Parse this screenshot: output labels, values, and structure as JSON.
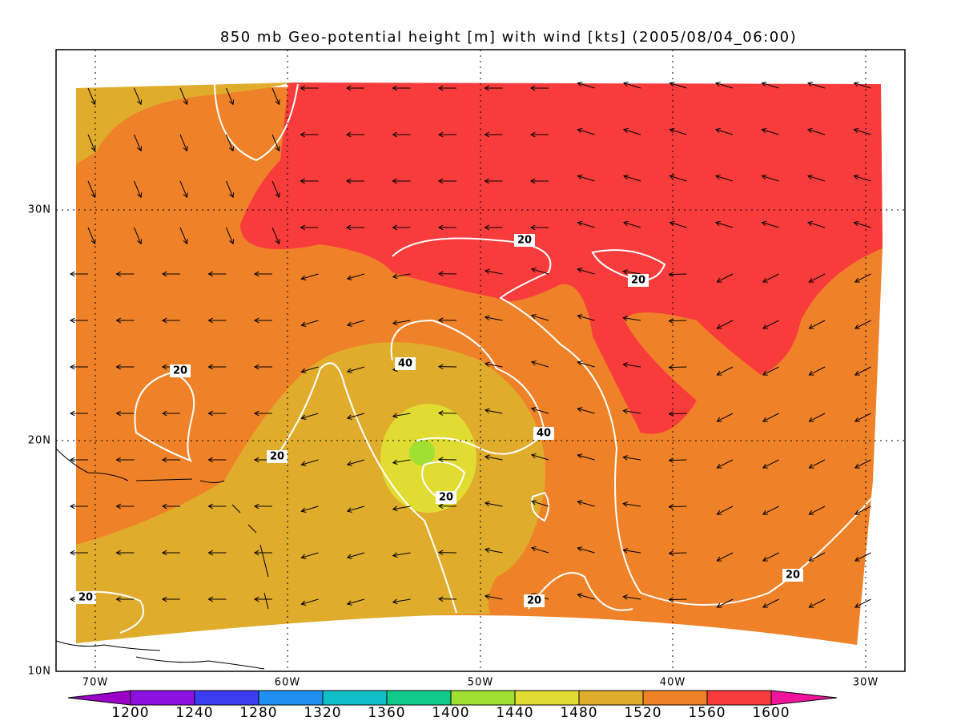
{
  "title": "850 mb Geo-potential height [m] with wind [kts] (2005/08/04_06:00)",
  "lon_labels": [
    "70W",
    "60W",
    "50W",
    "40W",
    "30W"
  ],
  "lat_labels": [
    "10N",
    "20N",
    "30N"
  ],
  "contour_labels": [
    20,
    20,
    20,
    20,
    40,
    40,
    20,
    20,
    20,
    20
  ],
  "colorbar": {
    "levels": [
      1200,
      1240,
      1280,
      1320,
      1360,
      1400,
      1440,
      1480,
      1520,
      1560,
      1600
    ],
    "colors": [
      "#9c00c8",
      "#8c10e0",
      "#3c3cf0",
      "#1e90f0",
      "#10c0c8",
      "#10cc8c",
      "#a0e032",
      "#e0dc32",
      "#e0ac2c",
      "#ef8228",
      "#f83c3c",
      "#f0149c"
    ]
  }
}
